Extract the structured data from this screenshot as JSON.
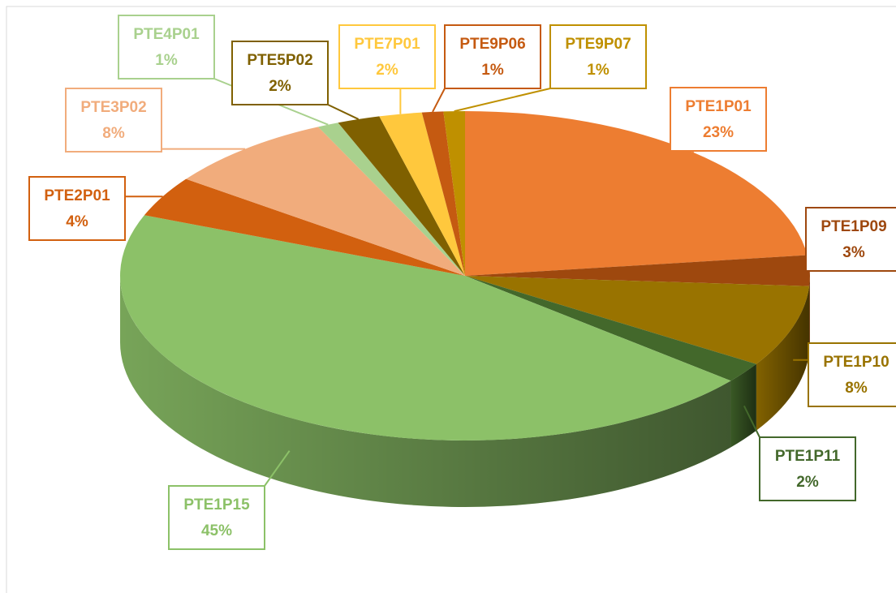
{
  "chart_data": {
    "type": "pie",
    "categories": [
      "PTE1P01",
      "PTE1P09",
      "PTE1P10",
      "PTE1P11",
      "PTE1P15",
      "PTE2P01",
      "PTE3P02",
      "PTE4P01",
      "PTE5P02",
      "PTE7P01",
      "PTE9P06",
      "PTE9P07"
    ],
    "values": [
      23,
      3,
      8,
      2,
      45,
      4,
      8,
      1,
      2,
      2,
      1,
      1
    ],
    "value_labels": [
      "23%",
      "3%",
      "8%",
      "2%",
      "45%",
      "4%",
      "8%",
      "1%",
      "2%",
      "2%",
      "1%",
      "1%"
    ],
    "colors": [
      "#ed7d31",
      "#9e480e",
      "#997300",
      "#43682b",
      "#8cc168",
      "#d2600f",
      "#f1ac7c",
      "#a9d18e",
      "#7f6000",
      "#ffc83d",
      "#c55a11",
      "#bf9000"
    ]
  }
}
